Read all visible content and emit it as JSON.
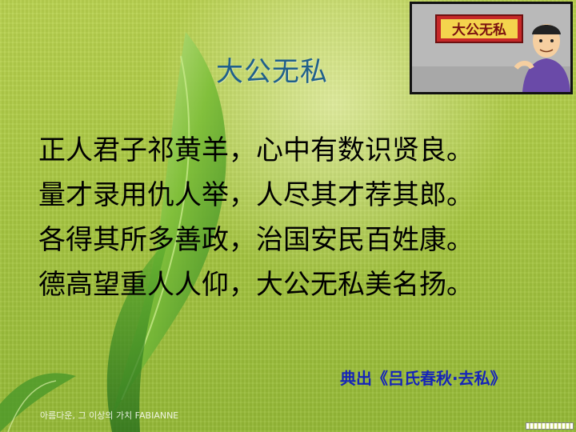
{
  "slide": {
    "title": "大公无私",
    "picture_sign": "大公无私",
    "poem": [
      "正人君子祁黄羊，心中有数识贤良。",
      "量才录用仇人举，人尽其才荐其郎。",
      "各得其所多善政，治国安民百姓康。",
      "德高望重人人仰，大公无私美名扬。"
    ],
    "source": "典出《吕氏春秋·去私》",
    "watermark": "아름다운, 그 이상의 가치  FABIANNE"
  },
  "colors": {
    "background": "#a9c842",
    "title": "#1f5f8b",
    "poem": "#000000",
    "source": "#1524b8",
    "sign": "#c62828"
  }
}
